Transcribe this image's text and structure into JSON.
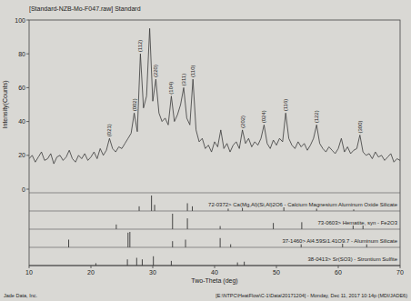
{
  "chart_data": {
    "type": "line",
    "title": "[Standard-NZB-Mo-F047.raw] Standard",
    "x_label": "Two-Theta (deg)",
    "y_label": "Intensity(Counts)",
    "xlim": [
      10,
      70
    ],
    "xticks": [
      10,
      20,
      30,
      40,
      50,
      60,
      70
    ],
    "ylim": [
      0,
      100
    ],
    "yticks": [
      0,
      20,
      40,
      60,
      80,
      100
    ],
    "grid": false,
    "x": [
      10,
      10.5,
      11,
      11.5,
      12,
      12.5,
      13,
      13.5,
      14,
      14.5,
      15,
      15.5,
      16,
      16.5,
      17,
      17.5,
      18,
      18.5,
      19,
      19.5,
      20,
      20.5,
      21,
      21.5,
      22,
      22.5,
      23,
      23.5,
      24,
      24.5,
      25,
      25.5,
      26,
      26.5,
      27,
      27.5,
      28,
      28.5,
      29,
      29.5,
      30,
      30.5,
      31,
      31.5,
      32,
      32.5,
      33,
      33.5,
      34,
      34.5,
      35,
      35.5,
      36,
      36.5,
      37,
      37.5,
      38,
      38.5,
      39,
      39.5,
      40,
      40.5,
      41,
      41.5,
      42,
      42.5,
      43,
      43.5,
      44,
      44.5,
      45,
      45.5,
      46,
      46.5,
      47,
      47.5,
      48,
      48.5,
      49,
      49.5,
      50,
      50.5,
      51,
      51.5,
      52,
      52.5,
      53,
      53.5,
      54,
      54.5,
      55,
      55.5,
      56,
      56.5,
      57,
      57.5,
      58,
      58.5,
      59,
      59.5,
      60,
      60.5,
      61,
      61.5,
      62,
      62.5,
      63,
      63.5,
      64,
      64.5,
      65,
      65.5,
      66,
      66.5,
      67,
      67.5,
      68,
      68.5,
      69,
      69.5,
      70
    ],
    "series": [
      {
        "color": "#3a3a3a",
        "values": [
          18,
          20,
          16,
          19,
          22,
          17,
          18,
          21,
          15,
          19,
          20,
          17,
          19,
          23,
          18,
          16,
          20,
          18,
          21,
          17,
          19,
          22,
          18,
          24,
          20,
          23,
          30,
          24,
          22,
          25,
          24,
          27,
          30,
          33,
          45,
          34,
          80,
          48,
          55,
          95,
          52,
          65,
          45,
          40,
          42,
          38,
          55,
          40,
          44,
          50,
          60,
          42,
          38,
          65,
          35,
          28,
          30,
          24,
          26,
          22,
          28,
          25,
          35,
          24,
          27,
          22,
          26,
          28,
          24,
          35,
          27,
          30,
          25,
          28,
          26,
          30,
          38,
          27,
          24,
          29,
          26,
          30,
          28,
          45,
          30,
          26,
          24,
          28,
          25,
          27,
          23,
          26,
          30,
          38,
          27,
          24,
          22,
          25,
          23,
          21,
          24,
          30,
          22,
          25,
          21,
          23,
          24,
          32,
          22,
          20,
          21,
          18,
          22,
          19,
          20,
          17,
          19,
          21,
          16,
          18,
          17
        ]
      }
    ],
    "annotations": [
      {
        "x": 23,
        "y": 30,
        "text": "(021)"
      },
      {
        "x": 27,
        "y": 45,
        "text": "(002)"
      },
      {
        "x": 28,
        "y": 80,
        "text": "(112)"
      },
      {
        "x": 30.5,
        "y": 65,
        "text": "(220)"
      },
      {
        "x": 33,
        "y": 55,
        "text": "(104)"
      },
      {
        "x": 35,
        "y": 60,
        "text": "(311)"
      },
      {
        "x": 36.5,
        "y": 65,
        "text": "(110)"
      },
      {
        "x": 44.5,
        "y": 35,
        "text": "(202)"
      },
      {
        "x": 48,
        "y": 38,
        "text": "(024)"
      },
      {
        "x": 51.5,
        "y": 45,
        "text": "(116)"
      },
      {
        "x": 56.5,
        "y": 38,
        "text": "(122)"
      },
      {
        "x": 63.5,
        "y": 32,
        "text": "(300)"
      }
    ],
    "reference_patterns": [
      {
        "label": "72-0372> Ca(Mg,Al)(Si,Al)2O6 - Calcium Magnesium Aluminum Oxide Silicate",
        "ylim": [
          0,
          100
        ],
        "x": [
          27.8,
          29.8,
          30.3,
          35.6,
          36.4,
          42.2,
          44.5,
          51.2,
          56.5,
          62.5
        ],
        "values": [
          30,
          100,
          40,
          50,
          30,
          15,
          20,
          25,
          15,
          10
        ]
      },
      {
        "label": "73-0603> Hematite, syn - Fe2O3",
        "ylim": [
          0,
          100
        ],
        "x": [
          24.1,
          33.2,
          35.6,
          40.9,
          49.5,
          54.1,
          62.4,
          64.0
        ],
        "values": [
          30,
          100,
          70,
          20,
          40,
          45,
          30,
          30
        ]
      },
      {
        "label": "37-1460> Al4.59Si1.41O9.7 - Aluminum Silicate",
        "ylim": [
          0,
          100
        ],
        "x": [
          16.4,
          26.0,
          26.3,
          33.2,
          35.3,
          40.9,
          42.6,
          54.0,
          60.7,
          64.6
        ],
        "values": [
          50,
          95,
          100,
          40,
          50,
          60,
          20,
          20,
          30,
          20
        ]
      },
      {
        "label": "38-0413> Sr(SO3) - Strontium Sulfite",
        "ylim": [
          0,
          100
        ],
        "x": [
          20.8,
          25.9,
          27.4,
          28.3,
          30.1,
          33.0,
          43.7,
          44.8
        ],
        "values": [
          15,
          40,
          50,
          40,
          60,
          30,
          20,
          25
        ]
      }
    ],
    "footer": {
      "left": "Jade Data, Inc.",
      "right": "[E:\\NTPC\\HeatFlow\\C-1\\Data\\20171204] - Monday, Dec 11, 2017 10:14p (MDI/JADE6)"
    }
  }
}
